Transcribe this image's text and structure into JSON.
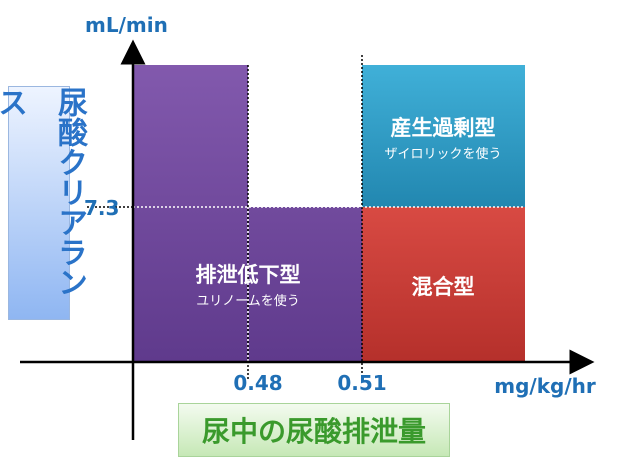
{
  "axes": {
    "y_unit": "mL/min",
    "x_unit": "mg/kg/hr",
    "y_tick": "7.3",
    "x_ticks": [
      "0.48",
      "0.51"
    ]
  },
  "y_axis_title": "尿酸クリアランス",
  "x_axis_title": "尿中の尿酸排泄量",
  "regions": [
    {
      "title": "産生過剰型",
      "note": "ザイロリックを使う"
    },
    {
      "title": "混合型"
    },
    {
      "title": "排泄低下型",
      "note": "ユリノームを使う"
    }
  ]
}
